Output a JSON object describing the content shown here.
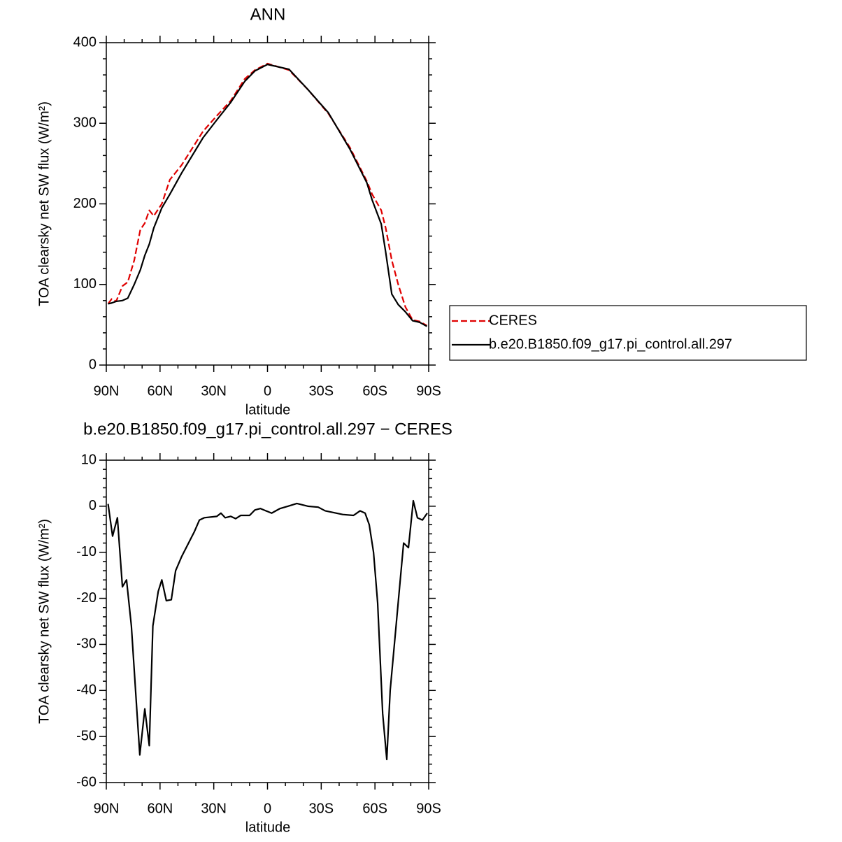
{
  "chart_data": [
    {
      "type": "line",
      "title": "ANN",
      "xlabel": "latitude",
      "ylabel": "TOA clearsky net SW flux (W/m²)",
      "x": [
        89,
        87,
        84.5,
        81,
        78,
        74.4,
        71,
        68.5,
        66,
        63.5,
        59,
        54.5,
        48,
        36,
        28,
        20.5,
        12.7,
        7,
        0,
        -12,
        -22.5,
        -34,
        -46,
        -55.5,
        -58.4,
        -63.5,
        -66,
        -69.4,
        -73,
        -77,
        -81,
        -85,
        -89
      ],
      "series": [
        {
          "name": "CERES",
          "color": "#e00000",
          "dash": true,
          "values": [
            76,
            82,
            79,
            98,
            103,
            130,
            168,
            176,
            192,
            185,
            200,
            230,
            248,
            290,
            310,
            328,
            355,
            366,
            374,
            366,
            342,
            312,
            270,
            228,
            212,
            192,
            170,
            130,
            100,
            72,
            56,
            54,
            49
          ]
        },
        {
          "name": "b.e20.B1850.f09_g17.pi_control.all.297",
          "color": "#000000",
          "dash": false,
          "values": [
            76,
            77,
            79,
            80,
            83,
            100,
            118,
            136,
            150,
            170,
            195,
            212,
            238,
            282,
            305,
            326,
            352,
            365,
            373,
            367,
            342,
            313,
            268,
            226,
            205,
            175,
            140,
            88,
            75,
            66,
            55,
            53,
            48
          ]
        }
      ],
      "xlim": [
        90,
        -90
      ],
      "xticks": [
        {
          "value": 90,
          "label": "90N"
        },
        {
          "value": 60,
          "label": "60N"
        },
        {
          "value": 30,
          "label": "30N"
        },
        0,
        {
          "value": -30,
          "label": "30S"
        },
        {
          "value": -60,
          "label": "60S"
        },
        {
          "value": -90,
          "label": "90S"
        }
      ],
      "xminor": [
        80,
        70,
        50,
        40,
        20,
        10,
        -10,
        -20,
        -40,
        -50,
        -70,
        -80
      ],
      "ylim": [
        0,
        400
      ],
      "yticks": [
        0,
        100,
        200,
        300,
        400
      ],
      "yminor": [
        20,
        40,
        60,
        80,
        120,
        140,
        160,
        180,
        220,
        240,
        260,
        280,
        320,
        340,
        360,
        380
      ],
      "legend": "right"
    },
    {
      "type": "line",
      "title": "b.e20.B1850.f09_g17.pi_control.all.297 − CERES",
      "xlabel": "latitude",
      "ylabel": "TOA clearsky net SW flux (W/m²)",
      "x": [
        89,
        86.5,
        83.8,
        81,
        78.7,
        76,
        73,
        71.3,
        68.5,
        66,
        64,
        61,
        59,
        56.5,
        53.7,
        51.3,
        48,
        40.8,
        38,
        35.3,
        28.3,
        26,
        23.6,
        20.5,
        17.8,
        15,
        10,
        7,
        4,
        -2.3,
        -7,
        -11.5,
        -16.4,
        -22.5,
        -28.3,
        -32.2,
        -42,
        -48,
        -51.7,
        -54.5,
        -56.8,
        -59.2,
        -61.5,
        -64.3,
        -66.6,
        -68.5,
        -76,
        -78.7,
        -81.4,
        -83.7,
        -86.5,
        -89.2
      ],
      "series": [
        {
          "color": "#000000",
          "dash": false,
          "values": [
            0.5,
            -6.5,
            -2.5,
            -17.5,
            -16,
            -26,
            -44,
            -54,
            -44,
            -52,
            -26,
            -18.5,
            -16,
            -20.5,
            -20.3,
            -14,
            -11,
            -5.5,
            -3,
            -2.5,
            -2.2,
            -1.5,
            -2.5,
            -2.2,
            -2.7,
            -2,
            -2,
            -0.8,
            -0.5,
            -1.5,
            -0.5,
            0,
            0.6,
            0,
            -0.2,
            -1,
            -1.8,
            -2,
            -1,
            -1.5,
            -4,
            -10,
            -21,
            -45,
            -55,
            -40,
            -8,
            -9,
            1.2,
            -2.5,
            -3,
            -1.5
          ]
        }
      ],
      "xlim": [
        90,
        -90
      ],
      "xticks": [
        {
          "value": 90,
          "label": "90N"
        },
        {
          "value": 60,
          "label": "60N"
        },
        {
          "value": 30,
          "label": "30N"
        },
        0,
        {
          "value": -30,
          "label": "30S"
        },
        {
          "value": -60,
          "label": "60S"
        },
        {
          "value": -90,
          "label": "90S"
        }
      ],
      "xminor": [
        80,
        70,
        50,
        40,
        20,
        10,
        -10,
        -20,
        -40,
        -50,
        -70,
        -80
      ],
      "ylim": [
        -60,
        10
      ],
      "yticks": [
        -60,
        -50,
        -40,
        -30,
        -20,
        -10,
        0,
        10
      ],
      "yminor": [
        -58,
        -56,
        -54,
        -52,
        -48,
        -46,
        -44,
        -42,
        -38,
        -36,
        -34,
        -32,
        -28,
        -26,
        -24,
        -22,
        -18,
        -16,
        -14,
        -12,
        -8,
        -6,
        -4,
        -2,
        2,
        4,
        6,
        8
      ]
    }
  ]
}
